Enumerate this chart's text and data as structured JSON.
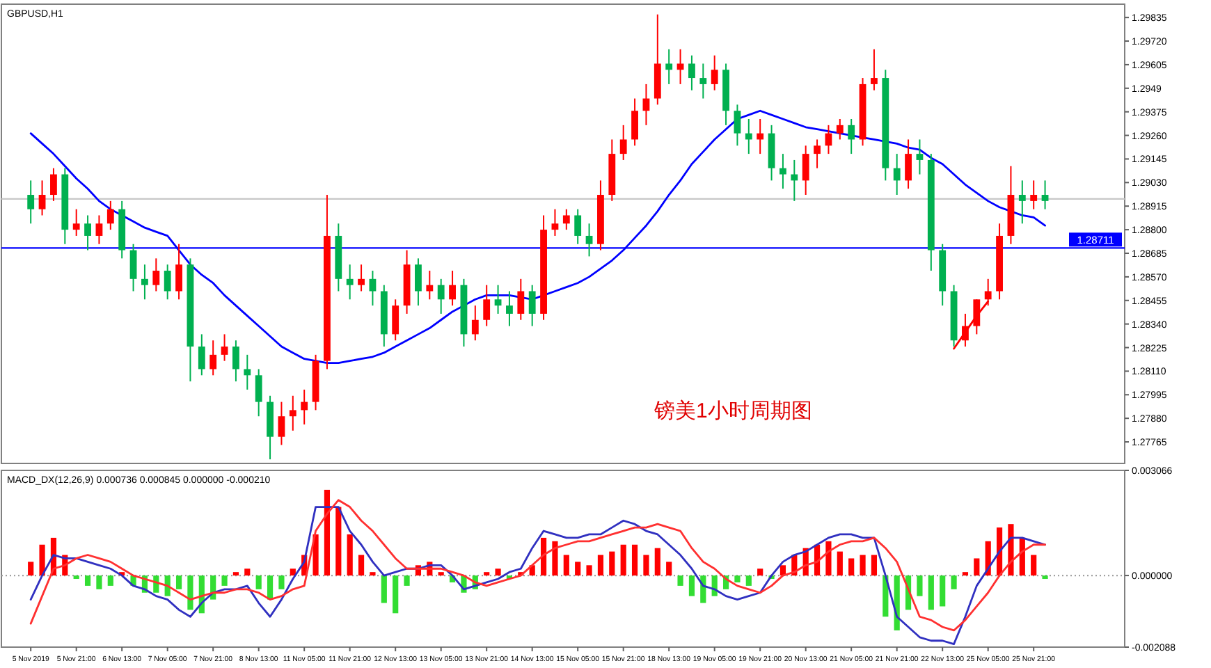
{
  "chart_data": [
    {
      "type": "candlestick",
      "title": "GBPUSD,H1",
      "tick_labels": "y",
      "annotations": [
        "镑美1小时周期图"
      ],
      "categories": [
        null,
        null,
        null,
        null,
        null,
        null,
        null,
        null,
        null,
        null,
        null,
        null,
        null,
        null,
        null,
        null,
        null,
        null,
        null,
        null,
        null,
        null,
        null,
        null,
        null,
        null,
        null,
        null,
        null,
        null,
        null,
        null,
        null,
        null,
        null,
        null,
        null,
        null,
        null,
        null,
        null,
        null,
        null,
        null,
        null,
        null,
        null,
        null,
        null,
        null,
        null,
        null,
        null,
        null,
        null,
        null,
        null,
        null,
        null,
        null,
        null,
        null,
        null,
        null,
        null,
        null,
        null,
        null,
        null,
        null,
        null,
        null,
        null,
        null,
        null,
        null,
        null,
        null,
        null,
        null,
        null,
        null,
        null,
        null,
        null,
        null,
        null,
        null,
        null,
        null,
        null,
        null,
        null,
        null,
        null,
        null
      ],
      "ohlc": [
        [
          1.2897,
          1.2904,
          1.2883,
          1.289
        ],
        [
          1.289,
          1.2904,
          1.2887,
          1.2897
        ],
        [
          1.2897,
          1.291,
          1.2894,
          1.2907
        ],
        [
          1.2907,
          1.291,
          1.2873,
          1.288
        ],
        [
          1.288,
          1.289,
          1.2877,
          1.2883
        ],
        [
          1.2883,
          1.2887,
          1.287,
          1.2877
        ],
        [
          1.2877,
          1.2887,
          1.2873,
          1.2883
        ],
        [
          1.2883,
          1.2894,
          1.288,
          1.289
        ],
        [
          1.289,
          1.2894,
          1.2866,
          1.287
        ],
        [
          1.287,
          1.2873,
          1.285,
          1.2856
        ],
        [
          1.2856,
          1.2863,
          1.2846,
          1.2853
        ],
        [
          1.2853,
          1.2866,
          1.285,
          1.286
        ],
        [
          1.286,
          1.2863,
          1.2846,
          1.285
        ],
        [
          1.285,
          1.2873,
          1.2846,
          1.2863
        ],
        [
          1.2863,
          1.2866,
          1.2806,
          1.2823
        ],
        [
          1.2823,
          1.2829,
          1.2809,
          1.2812
        ],
        [
          1.2812,
          1.2826,
          1.2809,
          1.2819
        ],
        [
          1.2819,
          1.2829,
          1.2816,
          1.2823
        ],
        [
          1.2823,
          1.2826,
          1.2806,
          1.2812
        ],
        [
          1.2812,
          1.2819,
          1.2802,
          1.2809
        ],
        [
          1.2809,
          1.2812,
          1.2789,
          1.2796
        ],
        [
          1.2796,
          1.2799,
          1.2768,
          1.2779
        ],
        [
          1.2779,
          1.2796,
          1.2775,
          1.2789
        ],
        [
          1.2789,
          1.2799,
          1.2782,
          1.2792
        ],
        [
          1.2792,
          1.2802,
          1.2785,
          1.2796
        ],
        [
          1.2796,
          1.2819,
          1.2792,
          1.2816
        ],
        [
          1.2816,
          1.2897,
          1.2812,
          1.2877
        ],
        [
          1.2877,
          1.2883,
          1.285,
          1.2856
        ],
        [
          1.2856,
          1.2863,
          1.2846,
          1.2853
        ],
        [
          1.2853,
          1.2863,
          1.285,
          1.2856
        ],
        [
          1.2856,
          1.286,
          1.2843,
          1.285
        ],
        [
          1.285,
          1.2853,
          1.2823,
          1.2829
        ],
        [
          1.2829,
          1.2846,
          1.2826,
          1.2843
        ],
        [
          1.2843,
          1.287,
          1.2839,
          1.2863
        ],
        [
          1.2863,
          1.2866,
          1.2843,
          1.285
        ],
        [
          1.285,
          1.286,
          1.2846,
          1.2853
        ],
        [
          1.2853,
          1.2856,
          1.2839,
          1.2846
        ],
        [
          1.2846,
          1.286,
          1.2843,
          1.2853
        ],
        [
          1.2853,
          1.2856,
          1.2823,
          1.2829
        ],
        [
          1.2829,
          1.2843,
          1.2826,
          1.2836
        ],
        [
          1.2836,
          1.2853,
          1.2833,
          1.2846
        ],
        [
          1.2846,
          1.2853,
          1.2839,
          1.2843
        ],
        [
          1.2843,
          1.285,
          1.2833,
          1.2839
        ],
        [
          1.2839,
          1.2856,
          1.2836,
          1.285
        ],
        [
          1.285,
          1.2853,
          1.2833,
          1.2839
        ],
        [
          1.2839,
          1.2887,
          1.2836,
          1.288
        ],
        [
          1.288,
          1.289,
          1.2877,
          1.2883
        ],
        [
          1.2883,
          1.289,
          1.288,
          1.2887
        ],
        [
          1.2887,
          1.289,
          1.2873,
          1.2877
        ],
        [
          1.2877,
          1.2883,
          1.2867,
          1.2873
        ],
        [
          1.2873,
          1.2904,
          1.287,
          1.2897
        ],
        [
          1.2897,
          1.2924,
          1.2894,
          1.2917
        ],
        [
          1.2917,
          1.2931,
          1.2914,
          1.2924
        ],
        [
          1.2924,
          1.2944,
          1.2921,
          1.2938
        ],
        [
          1.2938,
          1.2951,
          1.2931,
          1.2944
        ],
        [
          1.2944,
          1.2985,
          1.2941,
          1.2961
        ],
        [
          1.2961,
          1.2968,
          1.2951,
          1.2958
        ],
        [
          1.2958,
          1.2968,
          1.2951,
          1.2961
        ],
        [
          1.2961,
          1.2965,
          1.2948,
          1.2954
        ],
        [
          1.2954,
          1.2961,
          1.2944,
          1.2951
        ],
        [
          1.2951,
          1.2965,
          1.2948,
          1.2958
        ],
        [
          1.2958,
          1.2961,
          1.2931,
          1.2938
        ],
        [
          1.2938,
          1.2941,
          1.2921,
          1.2927
        ],
        [
          1.2927,
          1.2934,
          1.2917,
          1.2924
        ],
        [
          1.2924,
          1.2934,
          1.2917,
          1.2927
        ],
        [
          1.2927,
          1.2931,
          1.2904,
          1.291
        ],
        [
          1.291,
          1.2917,
          1.29,
          1.2907
        ],
        [
          1.2907,
          1.2914,
          1.2894,
          1.2904
        ],
        [
          1.2904,
          1.2921,
          1.2897,
          1.2917
        ],
        [
          1.2917,
          1.2924,
          1.291,
          1.2921
        ],
        [
          1.2921,
          1.2931,
          1.2917,
          1.2927
        ],
        [
          1.2927,
          1.2934,
          1.2924,
          1.2931
        ],
        [
          1.2931,
          1.2934,
          1.2917,
          1.2924
        ],
        [
          1.2924,
          1.2954,
          1.2921,
          1.2951
        ],
        [
          1.2951,
          1.2968,
          1.2948,
          1.2954
        ],
        [
          1.2954,
          1.2958,
          1.2904,
          1.291
        ],
        [
          1.291,
          1.2917,
          1.2897,
          1.2904
        ],
        [
          1.2904,
          1.2924,
          1.29,
          1.2917
        ],
        [
          1.2917,
          1.2924,
          1.2907,
          1.2914
        ],
        [
          1.2914,
          1.2917,
          1.286,
          1.287
        ],
        [
          1.287,
          1.2873,
          1.2843,
          1.285
        ],
        [
          1.285,
          1.2853,
          1.2823,
          1.2826
        ],
        [
          1.2826,
          1.2839,
          1.2823,
          1.2833
        ],
        [
          1.2833,
          1.2846,
          1.2829,
          1.2846
        ],
        [
          1.2846,
          1.2856,
          1.2843,
          1.285
        ],
        [
          1.285,
          1.2883,
          1.2846,
          1.2877
        ],
        [
          1.2877,
          1.2911,
          1.2873,
          1.2897
        ],
        [
          1.2897,
          1.2904,
          1.2883,
          1.2894
        ],
        [
          1.2894,
          1.2904,
          1.289,
          1.2897
        ],
        [
          1.2897,
          1.2904,
          1.289,
          1.2894
        ],
        null,
        null,
        null,
        null,
        null,
        null
      ],
      "colors": [
        "#00b050",
        "#ff0000",
        "#ff0000",
        "#00b050",
        "#ff0000",
        "#00b050",
        "#ff0000",
        "#ff0000",
        "#00b050",
        "#00b050",
        "#00b050",
        "#ff0000",
        "#00b050",
        "#ff0000",
        "#00b050",
        "#00b050",
        "#ff0000",
        "#ff0000",
        "#00b050",
        "#00b050",
        "#00b050",
        "#00b050",
        "#ff0000",
        "#ff0000",
        "#ff0000",
        "#ff0000",
        "#ff0000",
        "#00b050",
        "#00b050",
        "#ff0000",
        "#00b050",
        "#00b050",
        "#ff0000",
        "#ff0000",
        "#00b050",
        "#ff0000",
        "#00b050",
        "#ff0000",
        "#00b050",
        "#ff0000",
        "#ff0000",
        "#00b050",
        "#00b050",
        "#ff0000",
        "#00b050",
        "#ff0000",
        "#ff0000",
        "#ff0000",
        "#00b050",
        "#00b050",
        "#ff0000",
        "#ff0000",
        "#ff0000",
        "#ff0000",
        "#ff0000",
        "#ff0000",
        "#00b050",
        "#ff0000",
        "#00b050",
        "#00b050",
        "#ff0000",
        "#00b050",
        "#00b050",
        "#00b050",
        "#ff0000",
        "#00b050",
        "#00b050",
        "#00b050",
        "#ff0000",
        "#ff0000",
        "#ff0000",
        "#ff0000",
        "#00b050",
        "#ff0000",
        "#ff0000",
        "#00b050",
        "#00b050",
        "#ff0000",
        "#00b050",
        "#00b050",
        "#00b050",
        "#00b050",
        "#ff0000",
        "#ff0000",
        "#ff0000",
        "#ff0000",
        "#ff0000",
        "#00b050",
        "#ff0000",
        "#00b050",
        null,
        null,
        null,
        null,
        null,
        null
      ],
      "series": [
        {
          "type": "line",
          "color": "#0000ff",
          "values": [
            1.2927,
            1.2922,
            1.2917,
            1.2911,
            1.2905,
            1.29,
            1.2894,
            1.289,
            1.2887,
            1.2884,
            1.2881,
            1.2879,
            1.2877,
            1.287,
            1.2863,
            1.2858,
            1.2854,
            1.2848,
            1.2843,
            1.2838,
            1.2833,
            1.2828,
            1.2823,
            1.282,
            1.2817,
            1.2816,
            1.2815,
            1.2815,
            1.2816,
            1.2817,
            1.2818,
            1.282,
            1.2823,
            1.2826,
            1.2829,
            1.2832,
            1.2836,
            1.284,
            1.2843,
            1.2846,
            1.2848,
            1.2848,
            1.2848,
            1.2847,
            1.2846,
            1.2848,
            1.285,
            1.2852,
            1.2854,
            1.2857,
            1.2861,
            1.2865,
            1.287,
            1.2876,
            1.2882,
            1.2889,
            1.2897,
            1.2904,
            1.2912,
            1.2918,
            1.2924,
            1.2929,
            1.2934,
            1.2936,
            1.2938,
            1.2936,
            1.2934,
            1.2932,
            1.293,
            1.2929,
            1.2928,
            1.2927,
            1.2926,
            1.2925,
            1.2924,
            1.2923,
            1.2922,
            1.292,
            1.2919,
            1.2915,
            1.2912,
            1.2907,
            1.2902,
            1.2898,
            1.2894,
            1.2891,
            1.2889,
            1.2887,
            1.2886,
            1.2882,
            null,
            null,
            null,
            null,
            null,
            null
          ]
        },
        {
          "type": "line",
          "color": "#ff0000",
          "values": [
            null,
            null,
            null,
            null,
            null,
            null,
            null,
            null,
            null,
            null,
            null,
            null,
            null,
            null,
            null,
            null,
            null,
            null,
            null,
            null,
            null,
            null,
            null,
            null,
            null,
            null,
            null,
            null,
            null,
            null,
            null,
            null,
            null,
            null,
            null,
            null,
            null,
            null,
            null,
            null,
            null,
            null,
            null,
            null,
            null,
            null,
            null,
            null,
            null,
            null,
            null,
            null,
            null,
            null,
            null,
            null,
            null,
            null,
            null,
            null,
            null,
            null,
            null,
            null,
            null,
            null,
            null,
            null,
            null,
            null,
            null,
            null,
            null,
            null,
            null,
            null,
            null,
            null,
            null,
            null,
            null,
            1.2822,
            1.283,
            1.2838,
            1.2845,
            null,
            null,
            null,
            null,
            null,
            null,
            null,
            null,
            null,
            null,
            null
          ]
        }
      ],
      "ref_lines": [
        {
          "axis": "y",
          "value": 1.28711,
          "label": "1.28711",
          "color": "#0000ff"
        },
        {
          "axis": "y",
          "value": 1.2895,
          "color": "#c8c8c8"
        }
      ],
      "ylim": [
        1.2766,
        1.299
      ],
      "yticks": [
        1.29835,
        {
          "value": 1.2972,
          "label": "1.29720"
        },
        1.29605,
        1.2949,
        1.29375,
        {
          "value": 1.2926,
          "label": "1.29260"
        },
        1.29145,
        {
          "value": 1.2903,
          "label": "1.29030"
        },
        1.28915,
        {
          "value": 1.288,
          "label": "1.28800"
        },
        1.28685,
        {
          "value": 1.2857,
          "label": "1.28570"
        },
        1.28455,
        {
          "value": 1.2834,
          "label": "1.28340"
        },
        1.28225,
        {
          "value": 1.2811,
          "label": "1.28110"
        },
        1.27995,
        {
          "value": 1.2788,
          "label": "1.27880"
        },
        1.27765
      ]
    },
    {
      "type": "bar",
      "title": "MACD_DX(12,26,9) 0.000736 0.000845 0.000000 -0.000210",
      "categories": [
        "5 Nov 2019",
        null,
        null,
        null,
        "5 Nov 21:00",
        null,
        null,
        null,
        "6 Nov 13:00",
        null,
        null,
        null,
        "7 Nov 05:00",
        null,
        null,
        null,
        "7 Nov 21:00",
        null,
        null,
        null,
        "8 Nov 13:00",
        null,
        null,
        null,
        "11 Nov 05:00",
        null,
        null,
        null,
        "11 Nov 21:00",
        null,
        null,
        null,
        "12 Nov 13:00",
        null,
        null,
        null,
        "13 Nov 05:00",
        null,
        null,
        null,
        "13 Nov 21:00",
        null,
        null,
        null,
        "14 Nov 13:00",
        null,
        null,
        null,
        "15 Nov 05:00",
        null,
        null,
        null,
        "15 Nov 21:00",
        null,
        null,
        null,
        "18 Nov 13:00",
        null,
        null,
        null,
        "19 Nov 05:00",
        null,
        null,
        null,
        "19 Nov 21:00",
        null,
        null,
        null,
        "20 Nov 13:00",
        null,
        null,
        null,
        "21 Nov 05:00",
        null,
        null,
        null,
        "21 Nov 21:00",
        null,
        null,
        null,
        "22 Nov 13:00",
        null,
        null,
        null,
        "25 Nov 05:00",
        null,
        null,
        null,
        "25 Nov 21:00",
        null,
        null,
        null,
        null,
        null,
        null,
        null
      ],
      "series": [
        {
          "type": "bar",
          "values": [
            0.0004,
            0.0009,
            0.0011,
            0.0006,
            -0.0001,
            -0.0003,
            -0.0004,
            -0.0003,
            0.0001,
            -0.0003,
            -0.0005,
            -0.0005,
            -0.0006,
            -0.0004,
            -0.001,
            -0.0011,
            -0.0007,
            -0.0003,
            0.0001,
            0.0002,
            -0.0004,
            -0.0007,
            -0.0004,
            0.0002,
            0.0006,
            0.0012,
            0.0025,
            0.002,
            0.0012,
            0.0006,
            0.0001,
            -0.0008,
            -0.0011,
            -0.0003,
            0.0003,
            0.0004,
            0.0001,
            -0.0002,
            -0.0005,
            -0.0004,
            0.0001,
            0.0002,
            -0.0001,
            0.0001,
            0.0003,
            0.0011,
            0.001,
            0.0006,
            0.0004,
            0.0003,
            0.0006,
            0.0007,
            0.0009,
            0.0009,
            0.0006,
            0.0008,
            0.0004,
            -0.0003,
            -0.0006,
            -0.0008,
            -0.0006,
            -0.0004,
            -0.0002,
            -0.0003,
            0.0002,
            -0.0001,
            0.0003,
            0.0006,
            0.0008,
            0.0009,
            0.001,
            0.0007,
            0.0005,
            0.0006,
            0.0006,
            -0.0012,
            -0.0016,
            -0.001,
            -0.0006,
            -0.001,
            -0.0009,
            -0.0004,
            0.0001,
            0.0005,
            0.001,
            0.0014,
            0.0015,
            0.0011,
            0.0006,
            -0.0001,
            null,
            null,
            null,
            null,
            null,
            null
          ],
          "colors": [
            "#ff0000",
            "#ff0000",
            "#ff0000",
            "#ff0000",
            "#33dd33",
            "#33dd33",
            "#33dd33",
            "#33dd33",
            "#ff0000",
            "#33dd33",
            "#33dd33",
            "#33dd33",
            "#33dd33",
            "#33dd33",
            "#33dd33",
            "#33dd33",
            "#33dd33",
            "#33dd33",
            "#ff0000",
            "#ff0000",
            "#33dd33",
            "#33dd33",
            "#33dd33",
            "#ff0000",
            "#ff0000",
            "#ff0000",
            "#ff0000",
            "#ff0000",
            "#ff0000",
            "#ff0000",
            "#ff0000",
            "#33dd33",
            "#33dd33",
            "#33dd33",
            "#ff0000",
            "#ff0000",
            "#ff0000",
            "#33dd33",
            "#33dd33",
            "#33dd33",
            "#ff0000",
            "#ff0000",
            "#33dd33",
            "#ff0000",
            "#ff0000",
            "#ff0000",
            "#ff0000",
            "#ff0000",
            "#ff0000",
            "#ff0000",
            "#ff0000",
            "#ff0000",
            "#ff0000",
            "#ff0000",
            "#ff0000",
            "#ff0000",
            "#ff0000",
            "#33dd33",
            "#33dd33",
            "#33dd33",
            "#33dd33",
            "#33dd33",
            "#33dd33",
            "#33dd33",
            "#ff0000",
            "#33dd33",
            "#ff0000",
            "#ff0000",
            "#ff0000",
            "#ff0000",
            "#ff0000",
            "#ff0000",
            "#ff0000",
            "#ff0000",
            "#ff0000",
            "#33dd33",
            "#33dd33",
            "#33dd33",
            "#33dd33",
            "#33dd33",
            "#33dd33",
            "#33dd33",
            "#ff0000",
            "#ff0000",
            "#ff0000",
            "#ff0000",
            "#ff0000",
            "#ff0000",
            "#ff0000",
            "#33dd33",
            null,
            null,
            null,
            null,
            null,
            null
          ]
        },
        {
          "type": "line",
          "color": "#3030c0",
          "values": [
            -0.0007,
            0.0,
            0.0006,
            0.0005,
            0.0005,
            0.0004,
            0.0003,
            0.0002,
            0.0,
            -0.0003,
            -0.0004,
            -0.0006,
            -0.0007,
            -0.001,
            -0.0012,
            -0.0008,
            -0.0005,
            -0.0004,
            -0.0004,
            -0.0003,
            -0.0008,
            -0.0012,
            -0.0007,
            -0.0001,
            0.0004,
            0.002,
            0.002,
            0.002,
            0.0013,
            0.0009,
            0.0004,
            0.0,
            0.0001,
            0.0002,
            0.0002,
            0.0003,
            0.0003,
            0.0,
            -0.0004,
            -0.0003,
            -0.0002,
            -0.0001,
            0.0001,
            0.0002,
            0.0008,
            0.0013,
            0.0012,
            0.0011,
            0.0011,
            0.0012,
            0.0012,
            0.0014,
            0.0016,
            0.0015,
            0.0013,
            0.0012,
            0.0009,
            0.0006,
            0.0002,
            -0.0003,
            -0.0004,
            -0.0006,
            -0.0007,
            -0.0006,
            -0.0005,
            0.0,
            0.0004,
            0.0006,
            0.0007,
            0.0009,
            0.0011,
            0.0012,
            0.0012,
            0.0011,
            0.0011,
            0.0,
            -0.0012,
            -0.0015,
            -0.0018,
            -0.0019,
            -0.0019,
            -0.002,
            -0.0012,
            -0.0003,
            0.0002,
            0.0007,
            0.0011,
            0.0011,
            0.001,
            0.0009,
            null,
            null,
            null,
            null,
            null,
            null
          ]
        },
        {
          "type": "line",
          "color": "#ff3030",
          "values": [
            -0.0014,
            -0.0006,
            0.0002,
            0.0003,
            0.0005,
            0.0006,
            0.0005,
            0.0004,
            0.0002,
            0.0,
            -0.0001,
            -0.0002,
            -0.0003,
            -0.0005,
            -0.0007,
            -0.0006,
            -0.0005,
            -0.0005,
            -0.0004,
            -0.0004,
            -0.0005,
            -0.0007,
            -0.0006,
            -0.0004,
            -0.0003,
            0.0013,
            0.0018,
            0.0022,
            0.002,
            0.0016,
            0.0013,
            0.0009,
            0.0005,
            0.0002,
            0.0002,
            0.0002,
            0.0002,
            0.0001,
            0.0,
            -0.0002,
            -0.0003,
            -0.0002,
            -0.0001,
            0.0,
            0.0003,
            0.0006,
            0.0008,
            0.0009,
            0.001,
            0.001,
            0.0011,
            0.0012,
            0.0013,
            0.0014,
            0.0014,
            0.0015,
            0.0014,
            0.0013,
            0.0008,
            0.0004,
            0.0002,
            -0.0001,
            -0.0003,
            -0.0004,
            -0.0005,
            -0.0003,
            0.0,
            0.0001,
            0.0003,
            0.0004,
            0.0007,
            0.0009,
            0.001,
            0.001,
            0.0011,
            0.0008,
            0.0004,
            -0.0004,
            -0.0012,
            -0.0013,
            -0.0015,
            -0.0016,
            -0.0013,
            -0.0009,
            -0.0005,
            0.0,
            0.0004,
            0.0007,
            0.0009,
            0.0009,
            null,
            null,
            null,
            null,
            null,
            null
          ]
        }
      ],
      "ref_lines": [
        {
          "axis": "y",
          "value": 0,
          "color": "#a0a0a0",
          "line_style": "dotted"
        }
      ],
      "ylim": [
        -0.002088,
        0.003066
      ],
      "yticks": [
        {
          "value": 0.003066,
          "label": "0.003066"
        },
        {
          "value": 0,
          "label": "0.000000"
        },
        {
          "value": -0.002088,
          "label": "-0.002088"
        }
      ]
    }
  ]
}
